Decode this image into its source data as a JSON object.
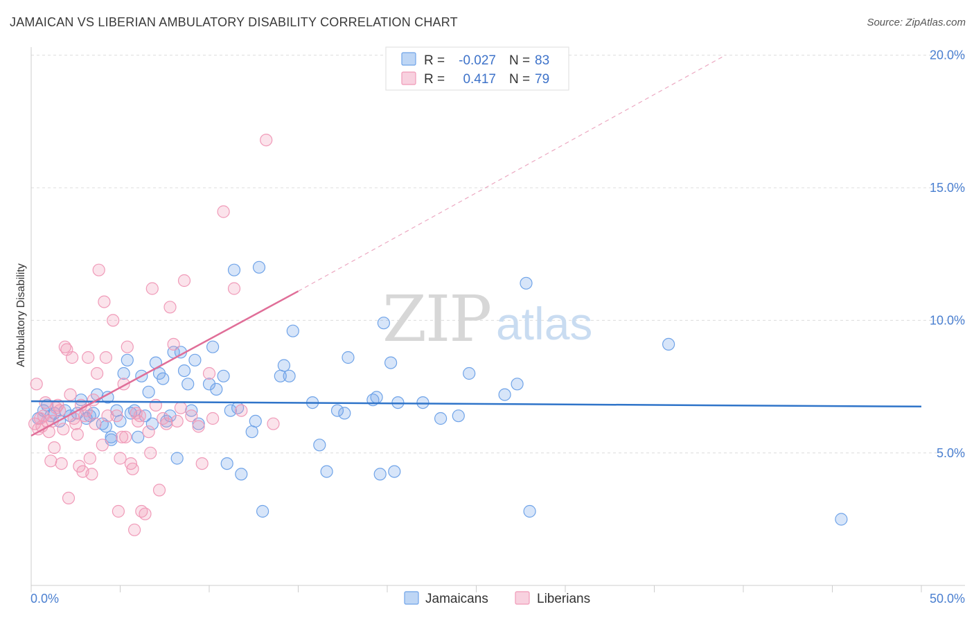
{
  "title": "JAMAICAN VS LIBERIAN AMBULATORY DISABILITY CORRELATION CHART",
  "source": "Source: ZipAtlas.com",
  "watermark": {
    "zip": "ZIP",
    "atlas": "atlas"
  },
  "legend_top": {
    "rows": [
      {
        "r_label": "R =",
        "r_value": "-0.027",
        "n_label": "N =",
        "n_value": "83",
        "color": "#6fa3e8"
      },
      {
        "r_label": "R =",
        "r_value": "0.417",
        "n_label": "N =",
        "n_value": "79",
        "color": "#f09ab8"
      }
    ]
  },
  "legend_bottom": [
    {
      "label": "Jamaicans",
      "color": "#6fa3e8"
    },
    {
      "label": "Liberians",
      "color": "#f09ab8"
    }
  ],
  "chart_data": {
    "type": "scatter",
    "ylabel": "Ambulatory Disability",
    "xlim": [
      0,
      50
    ],
    "ylim": [
      0,
      20.5
    ],
    "x_tick_labels": [
      {
        "value": 0,
        "label": "0.0%"
      },
      {
        "value": 50,
        "label": "50.0%"
      }
    ],
    "y_tick_labels": [
      {
        "value": 5,
        "label": "5.0%"
      },
      {
        "value": 10,
        "label": "10.0%"
      },
      {
        "value": 15,
        "label": "15.0%"
      },
      {
        "value": 20,
        "label": "20.0%"
      }
    ],
    "grid": true,
    "legend_position": "top-center",
    "series": [
      {
        "name": "Jamaicans",
        "color": "#6fa3e8",
        "line_color": "#2f74c9",
        "trend": {
          "x0": 0,
          "y0": 6.95,
          "x1": 50,
          "y1": 6.75
        },
        "points": [
          [
            0.4,
            6.3
          ],
          [
            0.7,
            6.6
          ],
          [
            0.9,
            6.8
          ],
          [
            1.1,
            6.4
          ],
          [
            1.3,
            6.5
          ],
          [
            1.6,
            6.2
          ],
          [
            1.9,
            6.6
          ],
          [
            2.2,
            6.4
          ],
          [
            2.6,
            6.5
          ],
          [
            2.8,
            7.0
          ],
          [
            3.1,
            6.3
          ],
          [
            3.3,
            6.4
          ],
          [
            3.5,
            6.5
          ],
          [
            3.7,
            7.2
          ],
          [
            4.0,
            6.1
          ],
          [
            4.2,
            6.0
          ],
          [
            4.3,
            7.1
          ],
          [
            4.5,
            5.6
          ],
          [
            4.5,
            5.5
          ],
          [
            4.8,
            6.6
          ],
          [
            5.0,
            6.2
          ],
          [
            5.2,
            8.0
          ],
          [
            5.4,
            8.5
          ],
          [
            5.6,
            6.5
          ],
          [
            5.8,
            6.6
          ],
          [
            6.0,
            5.6
          ],
          [
            6.2,
            7.9
          ],
          [
            6.4,
            6.4
          ],
          [
            6.6,
            7.3
          ],
          [
            6.8,
            6.1
          ],
          [
            7.0,
            8.4
          ],
          [
            7.2,
            8.0
          ],
          [
            7.4,
            7.8
          ],
          [
            7.6,
            6.2
          ],
          [
            7.8,
            6.4
          ],
          [
            8.0,
            8.8
          ],
          [
            8.2,
            4.8
          ],
          [
            8.4,
            8.8
          ],
          [
            8.6,
            8.1
          ],
          [
            8.8,
            7.6
          ],
          [
            9.0,
            6.6
          ],
          [
            9.2,
            8.5
          ],
          [
            9.4,
            6.1
          ],
          [
            10.0,
            7.6
          ],
          [
            10.2,
            9.0
          ],
          [
            10.4,
            7.4
          ],
          [
            10.8,
            7.9
          ],
          [
            11.0,
            4.6
          ],
          [
            11.2,
            6.6
          ],
          [
            11.4,
            11.9
          ],
          [
            11.6,
            6.7
          ],
          [
            11.8,
            4.2
          ],
          [
            12.4,
            5.8
          ],
          [
            12.6,
            6.2
          ],
          [
            12.8,
            12.0
          ],
          [
            13.0,
            2.8
          ],
          [
            14.0,
            7.9
          ],
          [
            14.2,
            8.3
          ],
          [
            14.5,
            7.9
          ],
          [
            14.7,
            9.6
          ],
          [
            15.8,
            6.9
          ],
          [
            16.2,
            5.3
          ],
          [
            16.6,
            4.3
          ],
          [
            17.2,
            6.6
          ],
          [
            17.6,
            6.5
          ],
          [
            17.8,
            8.6
          ],
          [
            19.2,
            7.0
          ],
          [
            19.4,
            7.1
          ],
          [
            19.6,
            4.2
          ],
          [
            19.8,
            9.9
          ],
          [
            20.2,
            8.4
          ],
          [
            20.4,
            4.3
          ],
          [
            20.6,
            6.9
          ],
          [
            22.0,
            6.9
          ],
          [
            23.0,
            6.3
          ],
          [
            24.0,
            6.4
          ],
          [
            24.6,
            8.0
          ],
          [
            26.6,
            7.2
          ],
          [
            27.3,
            7.6
          ],
          [
            27.8,
            11.4
          ],
          [
            28.0,
            2.8
          ],
          [
            35.8,
            9.1
          ],
          [
            45.5,
            2.5
          ]
        ]
      },
      {
        "name": "Liberians",
        "color": "#f09ab8",
        "line_color": "#e06e98",
        "trend": {
          "x0": 0,
          "y0": 5.65,
          "x1": 15,
          "y1": 11.1
        },
        "trend_extension": {
          "x0": 15,
          "y0": 11.1,
          "x1": 39,
          "y1": 20.0
        },
        "points": [
          [
            0.2,
            6.1
          ],
          [
            0.3,
            7.6
          ],
          [
            0.4,
            5.9
          ],
          [
            0.5,
            6.3
          ],
          [
            0.6,
            6.0
          ],
          [
            0.7,
            6.4
          ],
          [
            0.8,
            6.9
          ],
          [
            0.9,
            6.2
          ],
          [
            1.0,
            5.8
          ],
          [
            1.1,
            4.7
          ],
          [
            1.2,
            6.2
          ],
          [
            1.3,
            5.2
          ],
          [
            1.4,
            6.7
          ],
          [
            1.5,
            6.8
          ],
          [
            1.6,
            6.6
          ],
          [
            1.7,
            4.6
          ],
          [
            1.8,
            5.9
          ],
          [
            1.9,
            9.0
          ],
          [
            2.0,
            8.9
          ],
          [
            2.1,
            3.3
          ],
          [
            2.2,
            7.2
          ],
          [
            2.3,
            8.6
          ],
          [
            2.4,
            6.3
          ],
          [
            2.5,
            6.1
          ],
          [
            2.6,
            5.7
          ],
          [
            2.7,
            4.5
          ],
          [
            2.8,
            6.8
          ],
          [
            2.9,
            4.3
          ],
          [
            3.0,
            6.4
          ],
          [
            3.1,
            6.6
          ],
          [
            3.2,
            8.6
          ],
          [
            3.3,
            4.8
          ],
          [
            3.4,
            4.2
          ],
          [
            3.5,
            7.0
          ],
          [
            3.6,
            6.1
          ],
          [
            3.7,
            8.0
          ],
          [
            3.8,
            11.9
          ],
          [
            4.0,
            5.3
          ],
          [
            4.1,
            10.7
          ],
          [
            4.2,
            8.6
          ],
          [
            4.3,
            6.4
          ],
          [
            4.6,
            10.0
          ],
          [
            4.8,
            6.4
          ],
          [
            4.9,
            2.8
          ],
          [
            5.0,
            4.8
          ],
          [
            5.1,
            5.6
          ],
          [
            5.2,
            7.6
          ],
          [
            5.3,
            5.6
          ],
          [
            5.4,
            9.0
          ],
          [
            5.6,
            4.6
          ],
          [
            5.7,
            4.4
          ],
          [
            5.8,
            2.1
          ],
          [
            5.9,
            6.5
          ],
          [
            6.0,
            6.2
          ],
          [
            6.1,
            6.4
          ],
          [
            6.2,
            2.8
          ],
          [
            6.4,
            2.7
          ],
          [
            6.6,
            5.8
          ],
          [
            6.7,
            5.0
          ],
          [
            6.8,
            11.2
          ],
          [
            7.0,
            6.8
          ],
          [
            7.2,
            3.6
          ],
          [
            7.4,
            6.3
          ],
          [
            7.6,
            6.1
          ],
          [
            7.8,
            10.5
          ],
          [
            8.0,
            9.1
          ],
          [
            8.2,
            6.2
          ],
          [
            8.4,
            6.7
          ],
          [
            8.6,
            11.5
          ],
          [
            9.0,
            6.4
          ],
          [
            9.4,
            6.0
          ],
          [
            9.6,
            4.6
          ],
          [
            10.0,
            8.0
          ],
          [
            10.2,
            6.3
          ],
          [
            10.8,
            14.1
          ],
          [
            11.4,
            11.2
          ],
          [
            11.8,
            6.6
          ],
          [
            13.2,
            16.8
          ],
          [
            13.6,
            6.1
          ]
        ]
      }
    ]
  }
}
